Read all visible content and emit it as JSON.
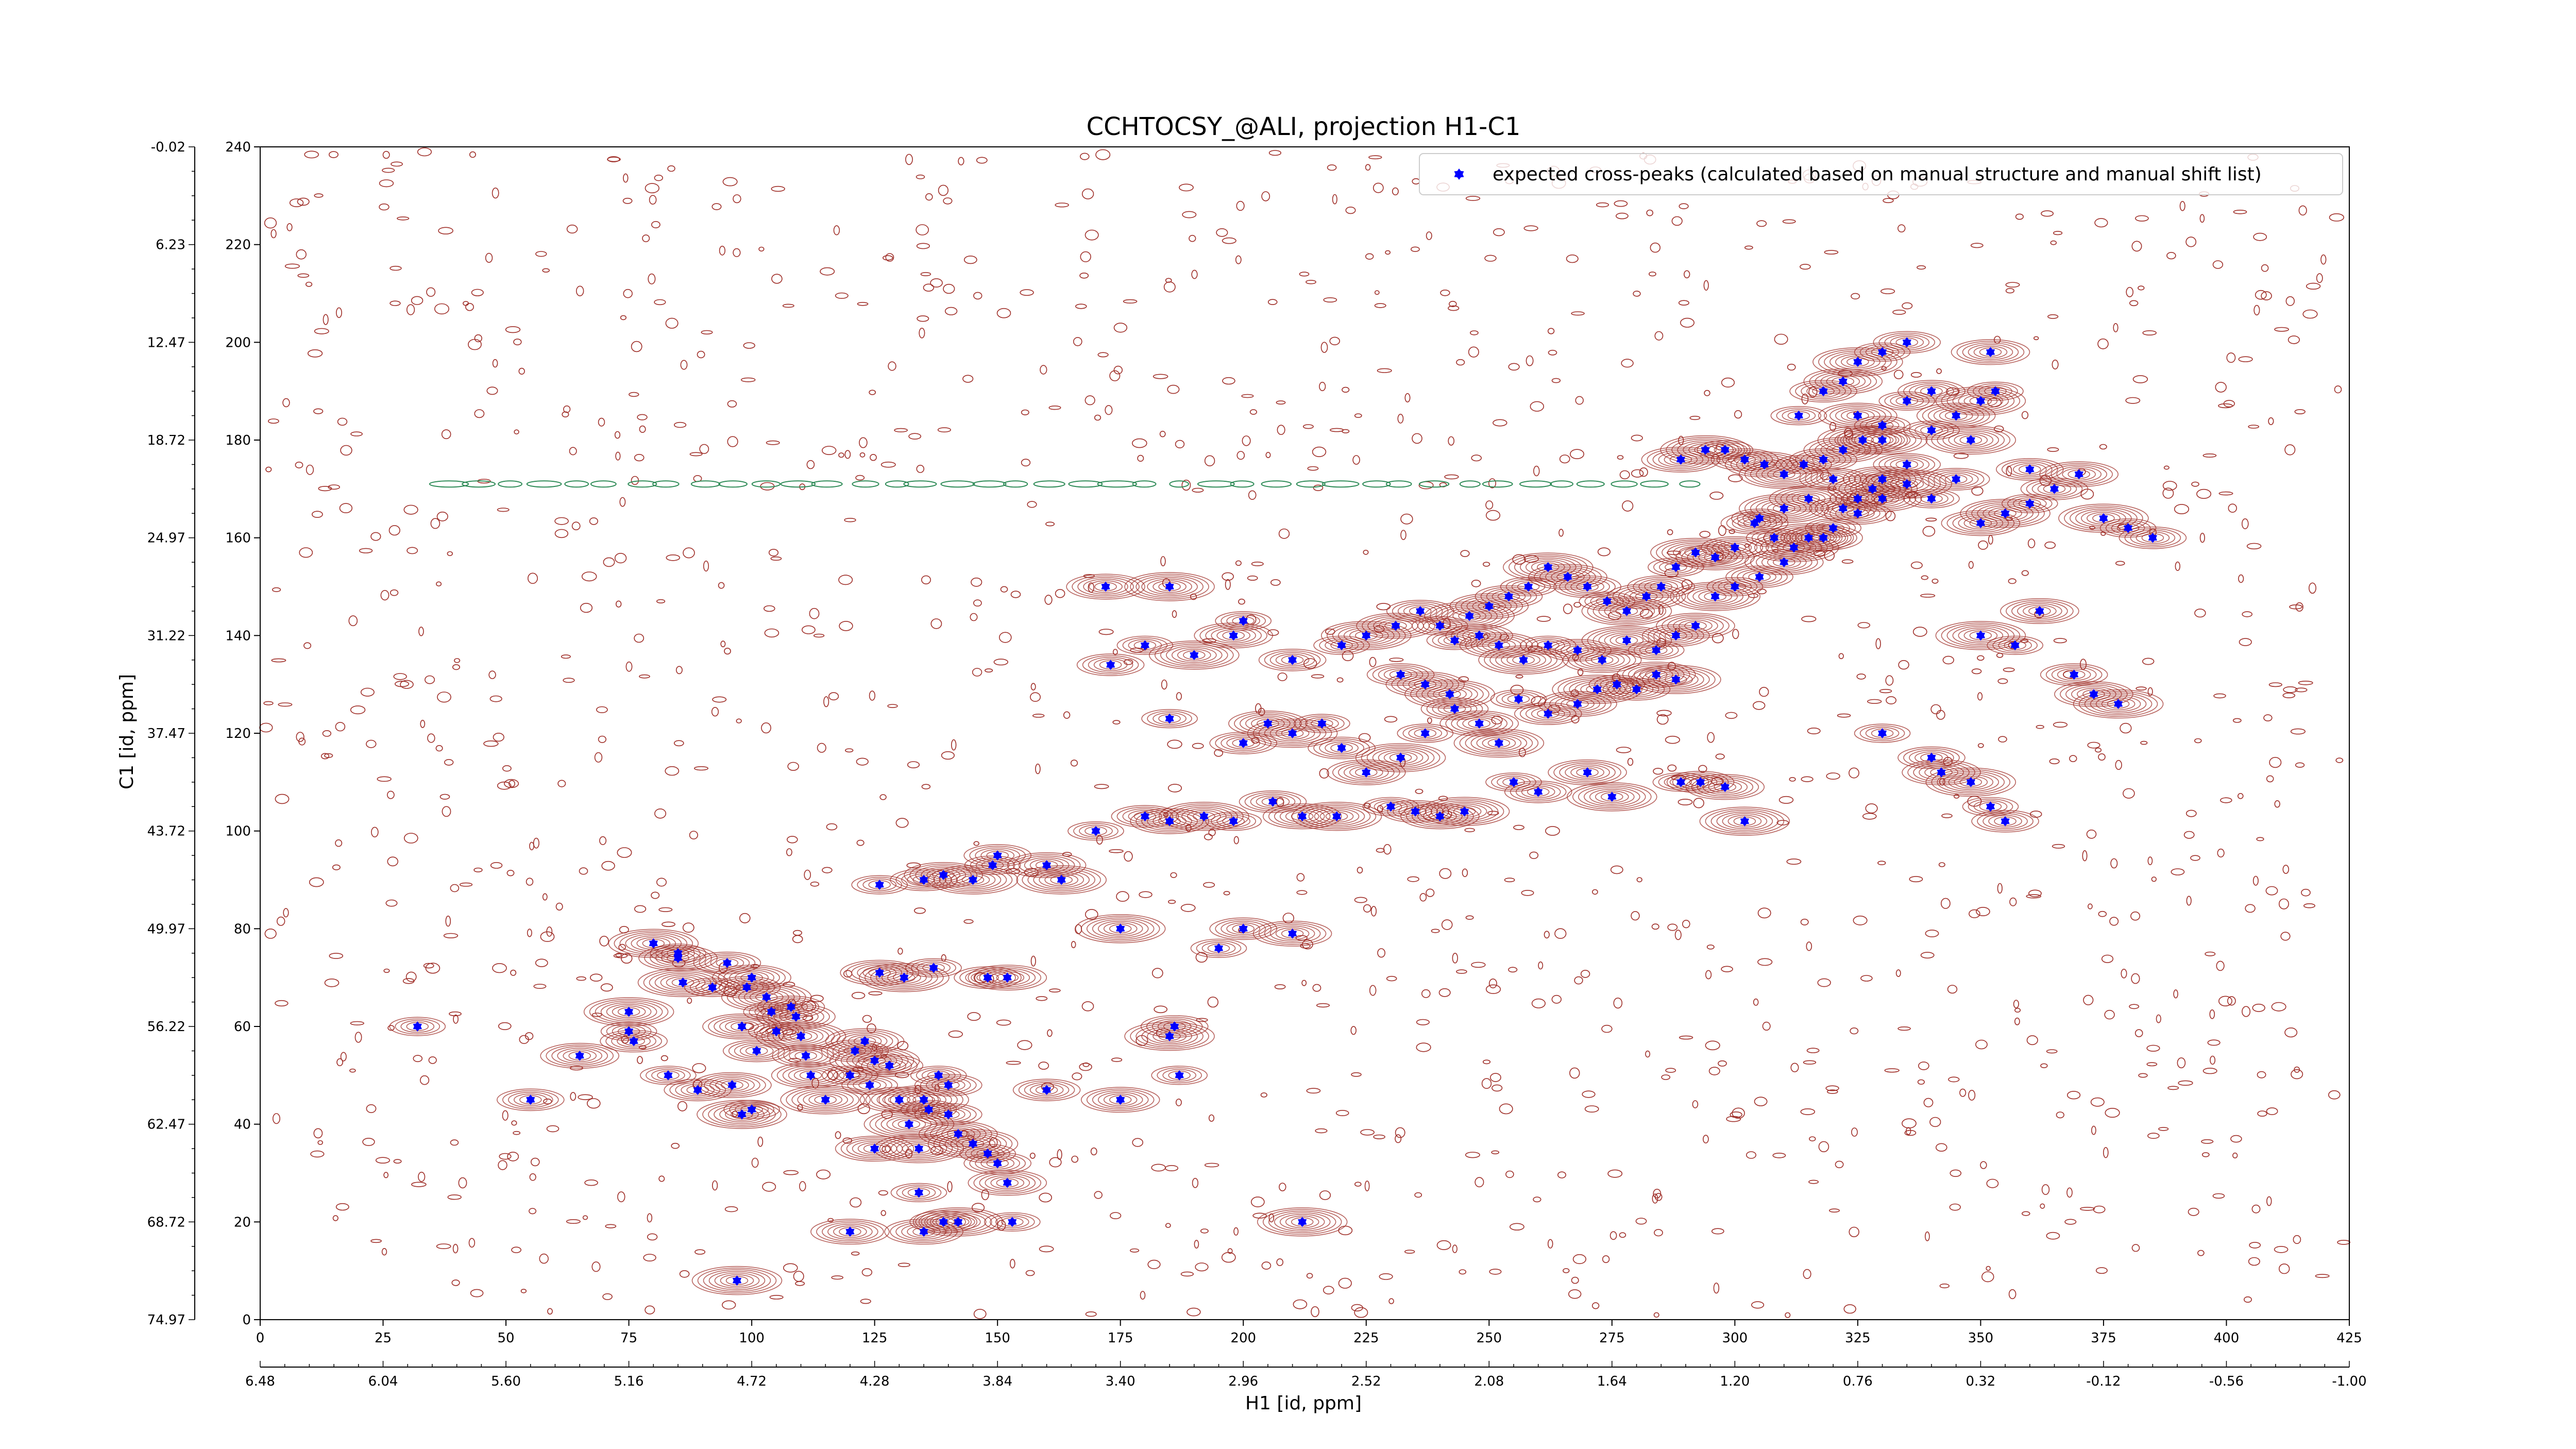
{
  "chart_data": {
    "type": "scatter",
    "title": "CCHTOCSY_@ALI, projection H1-C1",
    "xlabel": "H1 [id, ppm]",
    "ylabel": "C1 [id, ppm]",
    "xlim": [
      0,
      425
    ],
    "ylim": [
      0,
      240
    ],
    "x_ticks": [
      0,
      25,
      50,
      75,
      100,
      125,
      150,
      175,
      200,
      225,
      250,
      275,
      300,
      325,
      350,
      375,
      400,
      425
    ],
    "y_ticks": [
      0,
      20,
      40,
      60,
      80,
      100,
      120,
      140,
      160,
      180,
      200,
      220,
      240
    ],
    "secondary_x_ticks": [
      {
        "at": 0,
        "label": "6.48"
      },
      {
        "at": 25,
        "label": "6.04"
      },
      {
        "at": 50,
        "label": "5.60"
      },
      {
        "at": 75,
        "label": "5.16"
      },
      {
        "at": 100,
        "label": "4.72"
      },
      {
        "at": 125,
        "label": "4.28"
      },
      {
        "at": 150,
        "label": "3.84"
      },
      {
        "at": 175,
        "label": "3.40"
      },
      {
        "at": 200,
        "label": "2.96"
      },
      {
        "at": 225,
        "label": "2.52"
      },
      {
        "at": 250,
        "label": "2.08"
      },
      {
        "at": 275,
        "label": "1.64"
      },
      {
        "at": 300,
        "label": "1.20"
      },
      {
        "at": 325,
        "label": "0.76"
      },
      {
        "at": 350,
        "label": "0.32"
      },
      {
        "at": 375,
        "label": "-0.12"
      },
      {
        "at": 400,
        "label": "-0.56"
      },
      {
        "at": 425,
        "label": "-1.00"
      }
    ],
    "secondary_y_ticks": [
      {
        "at": 0,
        "label": "74.97"
      },
      {
        "at": 20,
        "label": "68.72"
      },
      {
        "at": 40,
        "label": "62.47"
      },
      {
        "at": 60,
        "label": "56.22"
      },
      {
        "at": 80,
        "label": "49.97"
      },
      {
        "at": 100,
        "label": "43.72"
      },
      {
        "at": 120,
        "label": "37.47"
      },
      {
        "at": 140,
        "label": "31.22"
      },
      {
        "at": 160,
        "label": "24.97"
      },
      {
        "at": 180,
        "label": "18.72"
      },
      {
        "at": 200,
        "label": "12.47"
      },
      {
        "at": 220,
        "label": "6.23"
      },
      {
        "at": 240,
        "label": "-0.02"
      }
    ],
    "legend": {
      "position": "top-right",
      "label": "expected cross-peaks (calculated based on manual structure and manual shift list)"
    },
    "colors": {
      "points": "#0000ff",
      "contour_positive": "#a0302a",
      "contour_negative": "#2e8b57"
    },
    "series": [
      {
        "name": "expected cross-peaks (calculated based on manual structure and manual shift list)",
        "points": [
          [
            32,
            60
          ],
          [
            55,
            45
          ],
          [
            65,
            54
          ],
          [
            75,
            63
          ],
          [
            75,
            59
          ],
          [
            76,
            57
          ],
          [
            85,
            74
          ],
          [
            86,
            69
          ],
          [
            92,
            68
          ],
          [
            99,
            68
          ],
          [
            98,
            60
          ],
          [
            103,
            66
          ],
          [
            104,
            63
          ],
          [
            108,
            64
          ],
          [
            109,
            62
          ],
          [
            110,
            58
          ],
          [
            105,
            59
          ],
          [
            101,
            55
          ],
          [
            96,
            48
          ],
          [
            98,
            42
          ],
          [
            100,
            43
          ],
          [
            111,
            54
          ],
          [
            112,
            50
          ],
          [
            115,
            45
          ],
          [
            120,
            50
          ],
          [
            121,
            55
          ],
          [
            123,
            57
          ],
          [
            125,
            53
          ],
          [
            124,
            48
          ],
          [
            128,
            52
          ],
          [
            130,
            45
          ],
          [
            132,
            40
          ],
          [
            136,
            43
          ],
          [
            140,
            42
          ],
          [
            142,
            38
          ],
          [
            145,
            36
          ],
          [
            148,
            34
          ],
          [
            150,
            32
          ],
          [
            152,
            28
          ],
          [
            135,
            45
          ],
          [
            138,
            50
          ],
          [
            140,
            48
          ],
          [
            125,
            35
          ],
          [
            134,
            35
          ],
          [
            134,
            26
          ],
          [
            139,
            20
          ],
          [
            135,
            18
          ],
          [
            142,
            20
          ],
          [
            153,
            20
          ],
          [
            160,
            47
          ],
          [
            175,
            45
          ],
          [
            185,
            58
          ],
          [
            187,
            50
          ],
          [
            186,
            60
          ],
          [
            120,
            18
          ],
          [
            97,
            8
          ],
          [
            83,
            50
          ],
          [
            89,
            47
          ],
          [
            126,
            71
          ],
          [
            131,
            70
          ],
          [
            137,
            72
          ],
          [
            148,
            70
          ],
          [
            152,
            70
          ],
          [
            80,
            77
          ],
          [
            85,
            75
          ],
          [
            95,
            73
          ],
          [
            100,
            70
          ],
          [
            175,
            80
          ],
          [
            195,
            76
          ],
          [
            200,
            80
          ],
          [
            210,
            79
          ],
          [
            212,
            20
          ],
          [
            126,
            89
          ],
          [
            135,
            90
          ],
          [
            139,
            91
          ],
          [
            145,
            90
          ],
          [
            149,
            93
          ],
          [
            150,
            95
          ],
          [
            160,
            93
          ],
          [
            163,
            90
          ],
          [
            170,
            100
          ],
          [
            180,
            103
          ],
          [
            185,
            102
          ],
          [
            192,
            103
          ],
          [
            198,
            102
          ],
          [
            206,
            106
          ],
          [
            212,
            103
          ],
          [
            219,
            103
          ],
          [
            230,
            105
          ],
          [
            235,
            104
          ],
          [
            240,
            103
          ],
          [
            245,
            104
          ],
          [
            255,
            110
          ],
          [
            260,
            108
          ],
          [
            270,
            112
          ],
          [
            275,
            107
          ],
          [
            289,
            110
          ],
          [
            293,
            110
          ],
          [
            298,
            109
          ],
          [
            302,
            102
          ],
          [
            185,
            123
          ],
          [
            200,
            118
          ],
          [
            205,
            122
          ],
          [
            210,
            120
          ],
          [
            216,
            122
          ],
          [
            220,
            117
          ],
          [
            225,
            112
          ],
          [
            232,
            115
          ],
          [
            237,
            120
          ],
          [
            243,
            125
          ],
          [
            248,
            122
          ],
          [
            252,
            118
          ],
          [
            256,
            127
          ],
          [
            262,
            124
          ],
          [
            268,
            126
          ],
          [
            272,
            129
          ],
          [
            276,
            130
          ],
          [
            280,
            129
          ],
          [
            284,
            132
          ],
          [
            288,
            131
          ],
          [
            243,
            139
          ],
          [
            248,
            140
          ],
          [
            252,
            138
          ],
          [
            257,
            135
          ],
          [
            262,
            138
          ],
          [
            268,
            137
          ],
          [
            273,
            135
          ],
          [
            278,
            139
          ],
          [
            284,
            137
          ],
          [
            288,
            140
          ],
          [
            292,
            142
          ],
          [
            296,
            148
          ],
          [
            300,
            150
          ],
          [
            305,
            152
          ],
          [
            310,
            155
          ],
          [
            315,
            160
          ],
          [
            320,
            162
          ],
          [
            325,
            165
          ],
          [
            330,
            168
          ],
          [
            335,
            171
          ],
          [
            340,
            168
          ],
          [
            345,
            172
          ],
          [
            350,
            163
          ],
          [
            355,
            165
          ],
          [
            360,
            167
          ],
          [
            365,
            170
          ],
          [
            370,
            173
          ],
          [
            375,
            164
          ],
          [
            380,
            162
          ],
          [
            385,
            160
          ],
          [
            325,
            185
          ],
          [
            330,
            180
          ],
          [
            335,
            188
          ],
          [
            340,
            190
          ],
          [
            345,
            185
          ],
          [
            350,
            188
          ],
          [
            353,
            190
          ],
          [
            320,
            172
          ],
          [
            315,
            168
          ],
          [
            310,
            166
          ],
          [
            305,
            164
          ],
          [
            300,
            158
          ],
          [
            296,
            156
          ],
          [
            292,
            157
          ],
          [
            288,
            154
          ],
          [
            285,
            150
          ],
          [
            282,
            148
          ],
          [
            278,
            145
          ],
          [
            274,
            147
          ],
          [
            270,
            150
          ],
          [
            266,
            152
          ],
          [
            262,
            154
          ],
          [
            258,
            150
          ],
          [
            254,
            148
          ],
          [
            250,
            146
          ],
          [
            246,
            144
          ],
          [
            240,
            142
          ],
          [
            236,
            145
          ],
          [
            231,
            142
          ],
          [
            225,
            140
          ],
          [
            220,
            138
          ],
          [
            210,
            135
          ],
          [
            198,
            140
          ],
          [
            190,
            136
          ],
          [
            180,
            138
          ],
          [
            173,
            134
          ],
          [
            172,
            150
          ],
          [
            185,
            150
          ],
          [
            200,
            143
          ],
          [
            232,
            132
          ],
          [
            237,
            130
          ],
          [
            242,
            128
          ],
          [
            313,
            185
          ],
          [
            318,
            190
          ],
          [
            322,
            192
          ],
          [
            325,
            196
          ],
          [
            330,
            198
          ],
          [
            335,
            200
          ],
          [
            352,
            198
          ],
          [
            348,
            180
          ],
          [
            340,
            182
          ],
          [
            335,
            175
          ],
          [
            330,
            172
          ],
          [
            328,
            170
          ],
          [
            325,
            168
          ],
          [
            322,
            166
          ],
          [
            318,
            160
          ],
          [
            312,
            158
          ],
          [
            308,
            160
          ],
          [
            304,
            163
          ],
          [
            362,
            145
          ],
          [
            350,
            140
          ],
          [
            357,
            138
          ],
          [
            369,
            132
          ],
          [
            373,
            128
          ],
          [
            378,
            126
          ],
          [
            330,
            120
          ],
          [
            340,
            115
          ],
          [
            342,
            112
          ],
          [
            348,
            110
          ],
          [
            352,
            105
          ],
          [
            355,
            102
          ],
          [
            289,
            176
          ],
          [
            294,
            178
          ],
          [
            298,
            178
          ],
          [
            302,
            176
          ],
          [
            306,
            175
          ],
          [
            310,
            173
          ],
          [
            314,
            175
          ],
          [
            318,
            176
          ],
          [
            322,
            178
          ],
          [
            326,
            180
          ],
          [
            330,
            183
          ],
          [
            360,
            174
          ]
        ]
      }
    ]
  }
}
